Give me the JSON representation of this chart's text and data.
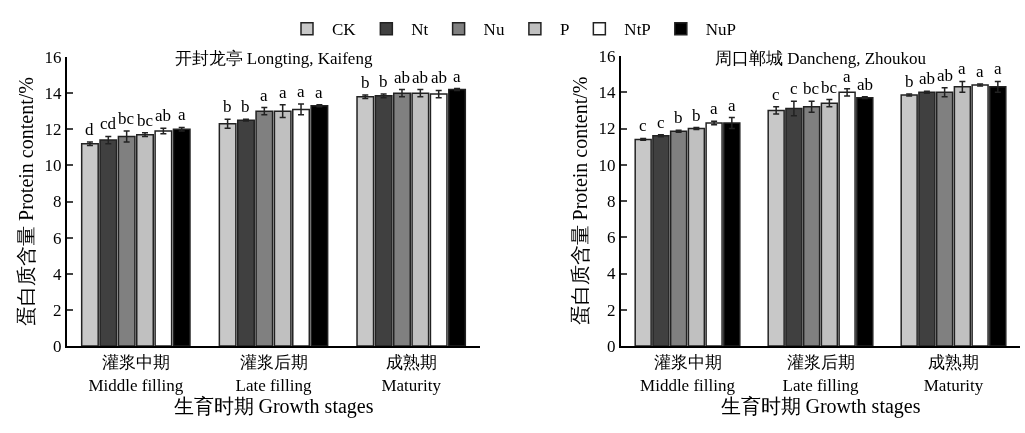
{
  "chart_data": [
    {
      "type": "bar",
      "title": "开封龙亭 Longting, Kaifeng",
      "xlabel": "生育时期 Growth stages",
      "ylabel": "蛋白质含量 Protein content/%",
      "categories": [
        "灌浆中期\nMiddle filling",
        "灌浆后期\nLate filling",
        "成熟期\nMaturity"
      ],
      "ylim": [
        0,
        16
      ],
      "yticks": [
        0,
        2,
        4,
        6,
        8,
        10,
        12,
        14,
        16
      ],
      "grid": false,
      "legend": "top",
      "series": [
        {
          "name": "CK",
          "color": "#c8c8c8",
          "values": [
            11.2,
            12.3,
            13.8
          ],
          "errors": [
            0.1,
            0.25,
            0.1
          ],
          "value_labels": [
            "d",
            "b",
            "b"
          ]
        },
        {
          "name": "Nt",
          "color": "#404040",
          "values": [
            11.4,
            12.5,
            13.85
          ],
          "errors": [
            0.2,
            0.05,
            0.1
          ],
          "value_labels": [
            "cd",
            "b",
            "b"
          ]
        },
        {
          "name": "Nu",
          "color": "#808080",
          "values": [
            11.6,
            13.0,
            14.0
          ],
          "errors": [
            0.3,
            0.2,
            0.2
          ],
          "value_labels": [
            "bc",
            "a",
            "ab"
          ]
        },
        {
          "name": "P",
          "color": "#c0c0c0",
          "values": [
            11.7,
            13.0,
            14.0
          ],
          "errors": [
            0.1,
            0.35,
            0.2
          ],
          "value_labels": [
            "bc",
            "a",
            "ab"
          ]
        },
        {
          "name": "NtP",
          "color": "#ffffff",
          "values": [
            11.9,
            13.1,
            13.95
          ],
          "errors": [
            0.15,
            0.3,
            0.2
          ],
          "value_labels": [
            "ab",
            "a",
            "ab"
          ]
        },
        {
          "name": "NuP",
          "color": "#000000",
          "values": [
            12.0,
            13.3,
            14.2
          ],
          "errors": [
            0.1,
            0.05,
            0.05
          ],
          "value_labels": [
            "a",
            "a",
            "a"
          ]
        }
      ]
    },
    {
      "type": "bar",
      "title": "周口郸城 Dancheng, Zhoukou",
      "xlabel": "生育时期 Growth stages",
      "ylabel": "蛋白质含量 Protein content/%",
      "categories": [
        "灌浆中期\nMiddle filling",
        "灌浆后期\nLate filling",
        "成熟期\nMaturity"
      ],
      "ylim": [
        0,
        16
      ],
      "yticks": [
        0,
        2,
        4,
        6,
        8,
        10,
        12,
        14,
        16
      ],
      "grid": false,
      "series": [
        {
          "color": "#c8c8c8",
          "values": [
            11.4,
            13.0,
            13.85
          ],
          "errors": [
            0.05,
            0.2,
            0.05
          ],
          "value_labels": [
            "c",
            "c",
            "b"
          ]
        },
        {
          "color": "#404040",
          "values": [
            11.6,
            13.1,
            14.0
          ],
          "errors": [
            0.05,
            0.4,
            0.05
          ],
          "value_labels": [
            "c",
            "c",
            "ab"
          ]
        },
        {
          "color": "#808080",
          "values": [
            11.85,
            13.2,
            14.0
          ],
          "errors": [
            0.05,
            0.3,
            0.25
          ],
          "value_labels": [
            "b",
            "bc",
            "ab"
          ]
        },
        {
          "color": "#c0c0c0",
          "values": [
            12.0,
            13.4,
            14.3
          ],
          "errors": [
            0.05,
            0.2,
            0.3
          ],
          "value_labels": [
            "b",
            "bc",
            "a"
          ]
        },
        {
          "color": "#ffffff",
          "values": [
            12.3,
            14.0,
            14.4
          ],
          "errors": [
            0.1,
            0.2,
            0.05
          ],
          "value_labels": [
            "a",
            "a",
            "a"
          ]
        },
        {
          "color": "#000000",
          "values": [
            12.3,
            13.7,
            14.3
          ],
          "errors": [
            0.3,
            0.05,
            0.3
          ],
          "value_labels": [
            "a",
            "ab",
            "a"
          ]
        }
      ]
    }
  ]
}
